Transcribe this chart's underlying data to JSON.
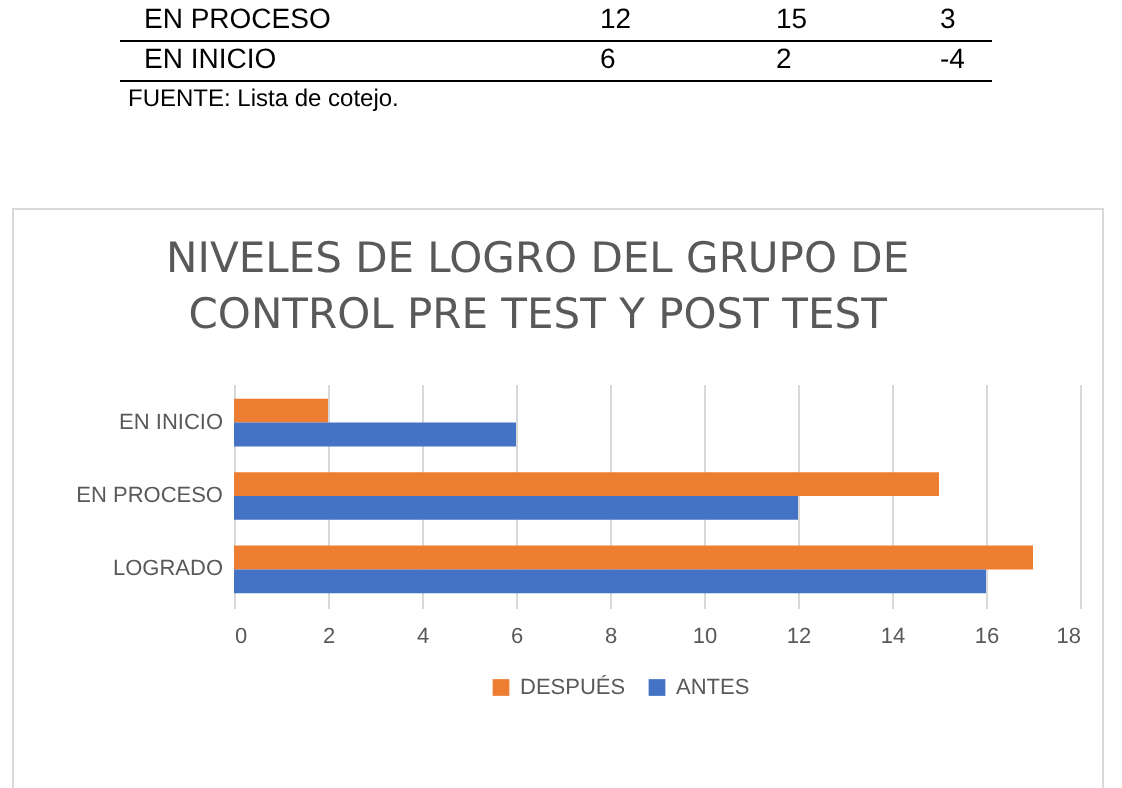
{
  "chart_data": {
    "type": "bar",
    "orientation": "horizontal",
    "title": "NIVELES DE LOGRO DEL GRUPO DE CONTROL  PRE TEST Y POST TEST",
    "categories": [
      "EN INICIO",
      "EN PROCESO",
      "LOGRADO"
    ],
    "series": [
      {
        "name": "DESPUÉS",
        "color": "#ed7d31",
        "values": [
          2,
          15,
          17
        ]
      },
      {
        "name": "ANTES",
        "color": "#4472c4",
        "values": [
          6,
          12,
          16
        ]
      }
    ],
    "xlim": [
      0,
      18
    ],
    "xticks": [
      0,
      2,
      4,
      6,
      8,
      10,
      12,
      14,
      16,
      18
    ],
    "grid": "x",
    "legend": "bottom",
    "annotations": [
      "EN PROCESO 12 15 3",
      "EN INICIO 6 2 -4",
      "FUENTE: Lista de cotejo."
    ]
  }
}
